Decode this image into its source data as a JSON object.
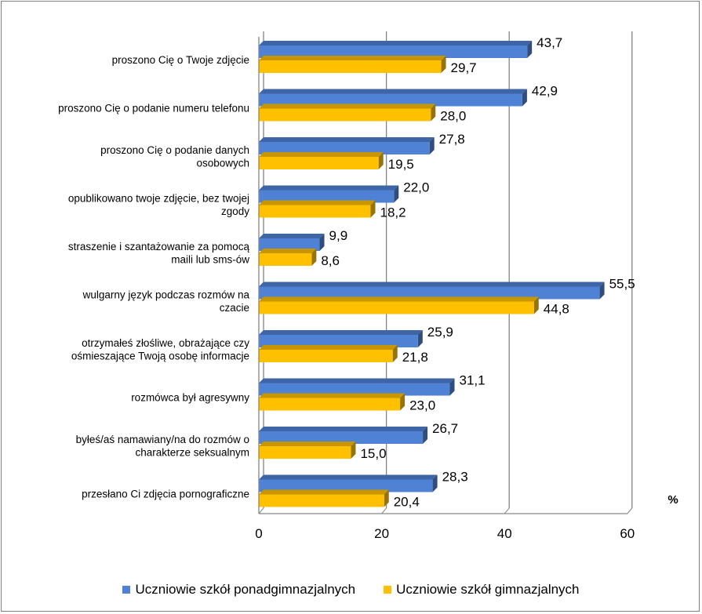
{
  "chart_data": {
    "type": "bar",
    "orientation": "horizontal",
    "categories": [
      [
        "proszono Cię o Twoje zdjęcie"
      ],
      [
        "proszono Cię o podanie numeru telefonu"
      ],
      [
        "proszono Cię o podanie danych",
        "osobowych"
      ],
      [
        "opublikowano twoje zdjęcie, bez twojej",
        "zgody"
      ],
      [
        "straszenie i szantażowanie za pomocą",
        "maili lub sms-ów"
      ],
      [
        "wulgarny język podczas rozmów na",
        "czacie"
      ],
      [
        "otrzymałeś złośliwe, obrażające czy",
        "ośmieszające Twoją osobę informacje"
      ],
      [
        "rozmówca był agresywny"
      ],
      [
        "byłeś/aś namawiany/na do rozmów o",
        "charakterze seksualnym"
      ],
      [
        "przesłano Ci zdjęcia pornograficzne"
      ]
    ],
    "series": [
      {
        "name": "Uczniowie szkół ponadgimnazjalnych",
        "color": "#4f81d4",
        "values": [
          43.7,
          42.9,
          27.8,
          22.0,
          9.9,
          55.5,
          25.9,
          31.1,
          26.7,
          28.3
        ],
        "labels": [
          "43,7",
          "42,9",
          "27,8",
          "22,0",
          "9,9",
          "55,5",
          "25,9",
          "31,1",
          "26,7",
          "28,3"
        ]
      },
      {
        "name": "Uczniowie szkół gimnazjalnych",
        "color": "#ffc000",
        "values": [
          29.7,
          28.0,
          19.5,
          18.2,
          8.6,
          44.8,
          21.8,
          23.0,
          15.0,
          20.4
        ],
        "labels": [
          "29,7",
          "28,0",
          "19,5",
          "18,2",
          "8,6",
          "44,8",
          "21,8",
          "23,0",
          "15,0",
          "20,4"
        ]
      }
    ],
    "xlim": [
      0,
      60
    ],
    "xticks": [
      "0",
      "20",
      "40",
      "60"
    ],
    "xticks_values": [
      0,
      20,
      40,
      60
    ],
    "unit_label": "%",
    "grid": true,
    "legend_position": "bottom"
  }
}
